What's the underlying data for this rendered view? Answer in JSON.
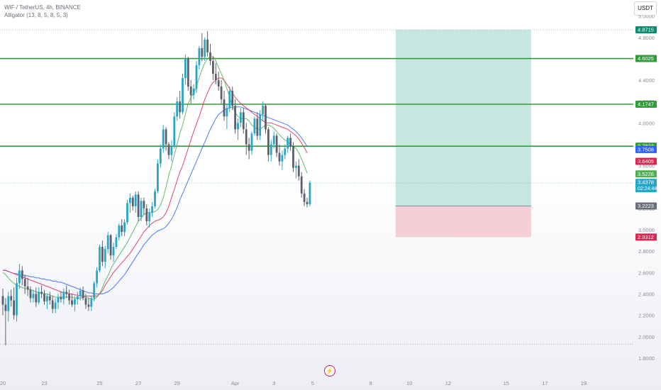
{
  "header": {
    "symbol_line": "WIF / TetherUS, 4h, BINANCE",
    "indicator_line": "Alligator (13, 8, 5, 8, 5, 3)",
    "currency_button": "USDT"
  },
  "event_icon": "lightning-icon",
  "colors": {
    "bull": "#26a6c8",
    "bear": "#5d606b",
    "jaw": "#2962ff",
    "teeth": "#e0244f",
    "lips": "#4caf50",
    "level_line": "#2e9d3a",
    "tp_zone": "#b9e0d8",
    "sl_zone": "#f2c8cf"
  },
  "chart_data": {
    "type": "candlestick",
    "y_axis": {
      "min": 1.7,
      "max": 5.15,
      "ticks": [
        "5.0000",
        "4.8000",
        "4.6000",
        "4.4000",
        "4.2000",
        "4.0000",
        "3.8000",
        "3.6000",
        "3.4000",
        "3.2000",
        "3.0000",
        "2.8000",
        "2.6000",
        "2.4000",
        "2.2000",
        "2.0000",
        "1.8000"
      ]
    },
    "x_axis": {
      "ticks": [
        {
          "label": "20",
          "bar": 0
        },
        {
          "label": "23",
          "bar": 15
        },
        {
          "label": "25",
          "bar": 35
        },
        {
          "label": "27",
          "bar": 49
        },
        {
          "label": "29",
          "bar": 63
        },
        {
          "label": "Apr",
          "bar": 84
        },
        {
          "label": "3",
          "bar": 98
        },
        {
          "label": "5",
          "bar": 112
        },
        {
          "label": "8",
          "bar": 133
        },
        {
          "label": "10",
          "bar": 147
        },
        {
          "label": "12",
          "bar": 161
        },
        {
          "label": "15",
          "bar": 182
        },
        {
          "label": "17",
          "bar": 196
        },
        {
          "label": "19",
          "bar": 210
        }
      ]
    },
    "candles": [
      [
        2.38,
        2.45,
        2.2,
        2.3
      ],
      [
        2.3,
        2.36,
        1.92,
        2.24
      ],
      [
        2.24,
        2.42,
        2.14,
        2.38
      ],
      [
        2.38,
        2.44,
        2.28,
        2.34
      ],
      [
        2.34,
        2.46,
        2.16,
        2.2
      ],
      [
        2.2,
        2.55,
        2.14,
        2.5
      ],
      [
        2.5,
        2.68,
        2.45,
        2.62
      ],
      [
        2.62,
        2.66,
        2.48,
        2.54
      ],
      [
        2.54,
        2.58,
        2.4,
        2.47
      ],
      [
        2.47,
        2.55,
        2.38,
        2.44
      ],
      [
        2.44,
        2.47,
        2.32,
        2.36
      ],
      [
        2.36,
        2.44,
        2.32,
        2.4
      ],
      [
        2.4,
        2.46,
        2.28,
        2.32
      ],
      [
        2.32,
        2.46,
        2.3,
        2.42
      ],
      [
        2.42,
        2.48,
        2.36,
        2.4
      ],
      [
        2.4,
        2.44,
        2.3,
        2.33
      ],
      [
        2.33,
        2.4,
        2.26,
        2.38
      ],
      [
        2.38,
        2.42,
        2.3,
        2.34
      ],
      [
        2.34,
        2.38,
        2.22,
        2.26
      ],
      [
        2.26,
        2.36,
        2.22,
        2.32
      ],
      [
        2.32,
        2.4,
        2.26,
        2.37
      ],
      [
        2.37,
        2.42,
        2.32,
        2.35
      ],
      [
        2.35,
        2.45,
        2.3,
        2.42
      ],
      [
        2.42,
        2.48,
        2.36,
        2.4
      ],
      [
        2.4,
        2.44,
        2.3,
        2.34
      ],
      [
        2.34,
        2.4,
        2.28,
        2.3
      ],
      [
        2.3,
        2.38,
        2.24,
        2.35
      ],
      [
        2.35,
        2.42,
        2.3,
        2.38
      ],
      [
        2.38,
        2.46,
        2.34,
        2.43
      ],
      [
        2.43,
        2.47,
        2.34,
        2.36
      ],
      [
        2.36,
        2.4,
        2.26,
        2.3
      ],
      [
        2.3,
        2.36,
        2.24,
        2.28
      ],
      [
        2.28,
        2.38,
        2.24,
        2.36
      ],
      [
        2.36,
        2.52,
        2.33,
        2.5
      ],
      [
        2.5,
        2.65,
        2.46,
        2.62
      ],
      [
        2.62,
        2.86,
        2.6,
        2.84
      ],
      [
        2.84,
        2.9,
        2.66,
        2.7
      ],
      [
        2.7,
        2.85,
        2.64,
        2.82
      ],
      [
        2.82,
        2.98,
        2.78,
        2.95
      ],
      [
        2.95,
        2.96,
        2.72,
        2.76
      ],
      [
        2.76,
        2.88,
        2.7,
        2.84
      ],
      [
        2.84,
        2.96,
        2.82,
        2.93
      ],
      [
        2.93,
        3.06,
        2.9,
        3.04
      ],
      [
        3.04,
        3.1,
        2.94,
        2.98
      ],
      [
        2.98,
        3.1,
        2.94,
        3.07
      ],
      [
        3.07,
        3.28,
        3.05,
        3.25
      ],
      [
        3.25,
        3.34,
        3.16,
        3.3
      ],
      [
        3.3,
        3.32,
        3.18,
        3.22
      ],
      [
        3.22,
        3.36,
        3.16,
        3.33
      ],
      [
        3.33,
        3.36,
        3.08,
        3.12
      ],
      [
        3.12,
        3.3,
        3.08,
        3.27
      ],
      [
        3.27,
        3.3,
        3.14,
        3.2
      ],
      [
        3.2,
        3.24,
        3.04,
        3.08
      ],
      [
        3.08,
        3.2,
        3.02,
        3.16
      ],
      [
        3.16,
        3.26,
        3.12,
        3.22
      ],
      [
        3.22,
        3.38,
        3.2,
        3.36
      ],
      [
        3.36,
        3.66,
        3.34,
        3.62
      ],
      [
        3.62,
        3.8,
        3.58,
        3.76
      ],
      [
        3.76,
        3.98,
        3.72,
        3.94
      ],
      [
        3.94,
        3.96,
        3.74,
        3.8
      ],
      [
        3.8,
        3.82,
        3.66,
        3.7
      ],
      [
        3.7,
        3.84,
        3.64,
        3.78
      ],
      [
        3.78,
        4.1,
        3.76,
        4.06
      ],
      [
        4.06,
        4.24,
        4.02,
        4.2
      ],
      [
        4.2,
        4.3,
        4.04,
        4.1
      ],
      [
        4.1,
        4.46,
        4.08,
        4.42
      ],
      [
        4.42,
        4.64,
        4.36,
        4.6
      ],
      [
        4.6,
        4.62,
        4.3,
        4.34
      ],
      [
        4.34,
        4.4,
        4.18,
        4.26
      ],
      [
        4.26,
        4.36,
        4.22,
        4.32
      ],
      [
        4.32,
        4.58,
        4.28,
        4.54
      ],
      [
        4.54,
        4.72,
        4.5,
        4.7
      ],
      [
        4.7,
        4.84,
        4.58,
        4.62
      ],
      [
        4.62,
        4.8,
        4.58,
        4.78
      ],
      [
        4.78,
        4.86,
        4.62,
        4.66
      ],
      [
        4.66,
        4.74,
        4.54,
        4.58
      ],
      [
        4.58,
        4.62,
        4.4,
        4.46
      ],
      [
        4.46,
        4.56,
        4.36,
        4.4
      ],
      [
        4.4,
        4.48,
        4.3,
        4.34
      ],
      [
        4.34,
        4.4,
        4.18,
        4.22
      ],
      [
        4.22,
        4.3,
        4.02,
        4.06
      ],
      [
        4.06,
        4.18,
        3.94,
        4.14
      ],
      [
        4.14,
        4.34,
        4.1,
        4.3
      ],
      [
        4.3,
        4.34,
        4.12,
        4.16
      ],
      [
        4.16,
        4.22,
        3.9,
        3.94
      ],
      [
        3.94,
        4.04,
        3.84,
        4.0
      ],
      [
        4.0,
        4.14,
        3.96,
        4.1
      ],
      [
        4.1,
        4.14,
        3.9,
        3.94
      ],
      [
        3.94,
        4.0,
        3.7,
        3.8
      ],
      [
        3.8,
        3.86,
        3.66,
        3.74
      ],
      [
        3.74,
        3.92,
        3.7,
        3.9
      ],
      [
        3.9,
        4.06,
        3.88,
        4.04
      ],
      [
        4.04,
        4.1,
        3.84,
        3.88
      ],
      [
        3.88,
        4.12,
        3.84,
        4.08
      ],
      [
        4.08,
        4.2,
        4.02,
        4.16
      ],
      [
        4.16,
        4.18,
        3.9,
        3.94
      ],
      [
        3.94,
        3.96,
        3.64,
        3.7
      ],
      [
        3.7,
        3.84,
        3.64,
        3.8
      ],
      [
        3.8,
        3.92,
        3.76,
        3.88
      ],
      [
        3.88,
        3.9,
        3.68,
        3.72
      ],
      [
        3.72,
        3.8,
        3.6,
        3.64
      ],
      [
        3.64,
        3.74,
        3.56,
        3.7
      ],
      [
        3.7,
        3.8,
        3.66,
        3.76
      ],
      [
        3.76,
        3.88,
        3.72,
        3.86
      ],
      [
        3.86,
        3.9,
        3.74,
        3.78
      ],
      [
        3.78,
        3.82,
        3.54,
        3.58
      ],
      [
        3.58,
        3.64,
        3.48,
        3.6
      ],
      [
        3.6,
        3.66,
        3.46,
        3.5
      ],
      [
        3.5,
        3.54,
        3.3,
        3.34
      ],
      [
        3.34,
        3.38,
        3.22,
        3.26
      ],
      [
        3.26,
        3.3,
        3.21,
        3.24
      ],
      [
        3.24,
        3.46,
        3.22,
        3.44
      ]
    ],
    "alligator": {
      "lips": [
        2.6,
        2.58,
        2.55,
        2.52,
        2.5,
        2.48,
        2.47,
        2.46,
        2.45,
        2.45,
        2.44,
        2.43,
        2.42,
        2.41,
        2.41,
        2.4,
        2.4,
        2.39,
        2.38,
        2.37,
        2.37,
        2.37,
        2.37,
        2.37,
        2.37,
        2.37,
        2.36,
        2.36,
        2.36,
        2.37,
        2.37,
        2.36,
        2.35,
        2.35,
        2.37,
        2.4,
        2.46,
        2.52,
        2.57,
        2.63,
        2.68,
        2.72,
        2.76,
        2.8,
        2.84,
        2.88,
        2.93,
        2.98,
        3.03,
        3.08,
        3.11,
        3.14,
        3.16,
        3.16,
        3.16,
        3.17,
        3.19,
        3.23,
        3.3,
        3.4,
        3.51,
        3.6,
        3.7,
        3.8,
        3.9,
        3.98,
        4.08,
        4.18,
        4.24,
        4.28,
        4.34,
        4.42,
        4.5,
        4.56,
        4.6,
        4.62,
        4.62,
        4.58,
        4.52,
        4.46,
        4.4,
        4.32,
        4.24,
        4.16,
        4.1,
        4.06,
        4.04,
        4.04,
        4.04,
        4.02,
        3.98,
        3.96,
        3.94,
        3.94,
        3.96,
        3.98,
        3.98,
        3.97,
        3.95,
        3.92,
        3.89,
        3.86,
        3.84,
        3.82,
        3.8,
        3.78,
        3.76,
        3.72,
        3.66,
        3.6,
        3.53
      ],
      "teeth": [
        2.62,
        2.62,
        2.61,
        2.6,
        2.59,
        2.58,
        2.57,
        2.56,
        2.55,
        2.54,
        2.53,
        2.52,
        2.51,
        2.5,
        2.49,
        2.48,
        2.47,
        2.46,
        2.45,
        2.44,
        2.43,
        2.42,
        2.41,
        2.41,
        2.4,
        2.4,
        2.39,
        2.39,
        2.38,
        2.38,
        2.38,
        2.38,
        2.38,
        2.38,
        2.38,
        2.4,
        2.43,
        2.48,
        2.52,
        2.56,
        2.6,
        2.63,
        2.66,
        2.69,
        2.72,
        2.75,
        2.78,
        2.82,
        2.86,
        2.9,
        2.94,
        2.98,
        3.01,
        3.04,
        3.06,
        3.08,
        3.09,
        3.1,
        3.12,
        3.16,
        3.22,
        3.3,
        3.38,
        3.46,
        3.54,
        3.6,
        3.68,
        3.76,
        3.84,
        3.92,
        3.99,
        4.06,
        4.14,
        4.22,
        4.28,
        4.34,
        4.38,
        4.4,
        4.42,
        4.42,
        4.4,
        4.36,
        4.32,
        4.28,
        4.24,
        4.21,
        4.18,
        4.16,
        4.14,
        4.12,
        4.1,
        4.08,
        4.06,
        4.04,
        4.02,
        4.0,
        4.0,
        4.0,
        3.99,
        3.98,
        3.97,
        3.96,
        3.95,
        3.94,
        3.92,
        3.9,
        3.88,
        3.85,
        3.81,
        3.77,
        3.72
      ],
      "jaw": [
        2.62,
        2.62,
        2.61,
        2.6,
        2.59,
        2.59,
        2.58,
        2.58,
        2.57,
        2.57,
        2.56,
        2.56,
        2.55,
        2.55,
        2.54,
        2.54,
        2.53,
        2.53,
        2.52,
        2.52,
        2.51,
        2.51,
        2.5,
        2.49,
        2.48,
        2.47,
        2.46,
        2.45,
        2.44,
        2.43,
        2.42,
        2.41,
        2.41,
        2.4,
        2.4,
        2.4,
        2.4,
        2.41,
        2.42,
        2.44,
        2.46,
        2.49,
        2.52,
        2.55,
        2.58,
        2.62,
        2.66,
        2.7,
        2.74,
        2.78,
        2.82,
        2.86,
        2.89,
        2.92,
        2.95,
        2.97,
        2.99,
        3.0,
        3.01,
        3.03,
        3.06,
        3.1,
        3.15,
        3.21,
        3.28,
        3.34,
        3.4,
        3.46,
        3.52,
        3.58,
        3.64,
        3.7,
        3.76,
        3.82,
        3.88,
        3.94,
        3.99,
        4.04,
        4.08,
        4.1,
        4.12,
        4.13,
        4.14,
        4.15,
        4.15,
        4.15,
        4.15,
        4.14,
        4.13,
        4.12,
        4.11,
        4.1,
        4.09,
        4.08,
        4.07,
        4.06,
        4.05,
        4.04,
        4.03,
        4.02,
        4.01,
        4.0,
        3.99,
        3.98,
        3.96,
        3.94,
        3.92,
        3.89,
        3.86,
        3.82,
        3.78
      ]
    },
    "horizontal_levels": [
      4.6025,
      4.1747,
      3.7823
    ],
    "dotted_levels": [
      4.8715,
      1.93
    ],
    "current_price_line": 3.4378,
    "position": {
      "start_bar": 142,
      "end_bar": 191,
      "target": 4.8715,
      "entry": 3.2223,
      "stop": 2.9312
    },
    "price_labels": [
      {
        "value": 4.8715,
        "text": "4.8715",
        "color": "#0a8c6e"
      },
      {
        "value": 4.6025,
        "text": "4.6025",
        "color": "#2e9d3a"
      },
      {
        "value": 4.1747,
        "text": "4.1747",
        "color": "#2e9d3a"
      },
      {
        "value": 3.7823,
        "text": "3.7823",
        "color": "#2e9d3a"
      },
      {
        "value": 3.7508,
        "text": "3.7508",
        "color": "#2962ff"
      },
      {
        "value": 3.6405,
        "text": "3.6405",
        "color": "#e0244f"
      },
      {
        "value": 3.5226,
        "text": "3.5226",
        "color": "#4caf50"
      },
      {
        "value": 3.4378,
        "text": "3.4378",
        "sub": "02:24:44",
        "color": "#22a9c5"
      },
      {
        "value": 3.2223,
        "text": "3.2223",
        "color": "#6a6d78"
      },
      {
        "value": 2.9312,
        "text": "2.9312",
        "color": "#e0244f"
      }
    ]
  }
}
